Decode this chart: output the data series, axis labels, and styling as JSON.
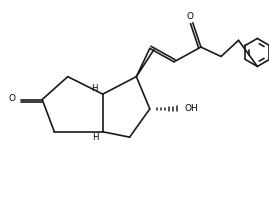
{
  "bg_color": "#ffffff",
  "line_color": "#1a1a1a",
  "lw": 1.2,
  "figsize": [
    2.7,
    1.99
  ],
  "dpi": 100,
  "xlim": [
    0,
    10.0
  ],
  "ylim": [
    0,
    7.4
  ]
}
